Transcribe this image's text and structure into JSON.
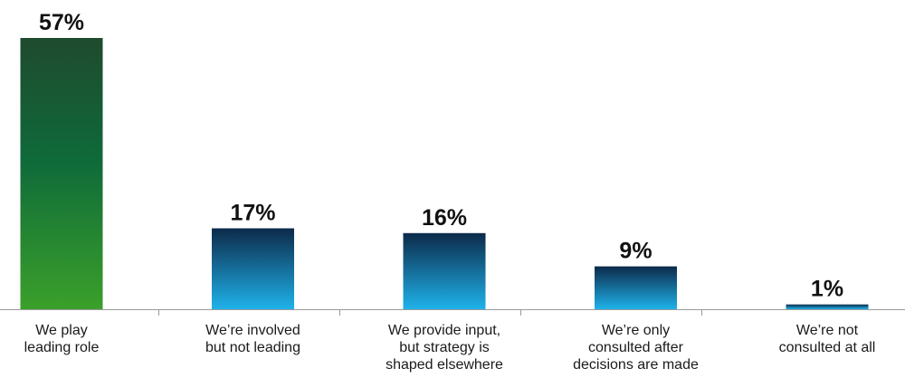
{
  "chart_data": {
    "type": "bar",
    "categories": [
      "We play leading role",
      "We’re involved but not leading",
      "We provide input, but strategy is shaped elsewhere",
      "We’re only consulted after decisions are made",
      "We’re not consulted at all"
    ],
    "category_label_lines": [
      [
        "We play",
        "leading role"
      ],
      [
        "We’re involved",
        "but not leading"
      ],
      [
        "We provide input,",
        "but strategy is",
        "shaped elsewhere"
      ],
      [
        "We’re only",
        "consulted after",
        "decisions are made"
      ],
      [
        "We’re not",
        "consulted at all"
      ]
    ],
    "values": [
      57,
      17,
      16,
      9,
      1
    ],
    "value_labels": [
      "57%",
      "17%",
      "16%",
      "9%",
      "1%"
    ],
    "unit": "%",
    "ylim": [
      0,
      57
    ],
    "grid": false,
    "legend": "none",
    "colors": {
      "highlight_top": "#1f4a2e",
      "highlight_mid": "#0f6a3a",
      "highlight_bottom": "#3aa02a",
      "bar_top": "#0c2a4a",
      "bar_bottom": "#1fb2ea",
      "axis": "#9a9a9a",
      "text": "#111111"
    }
  }
}
